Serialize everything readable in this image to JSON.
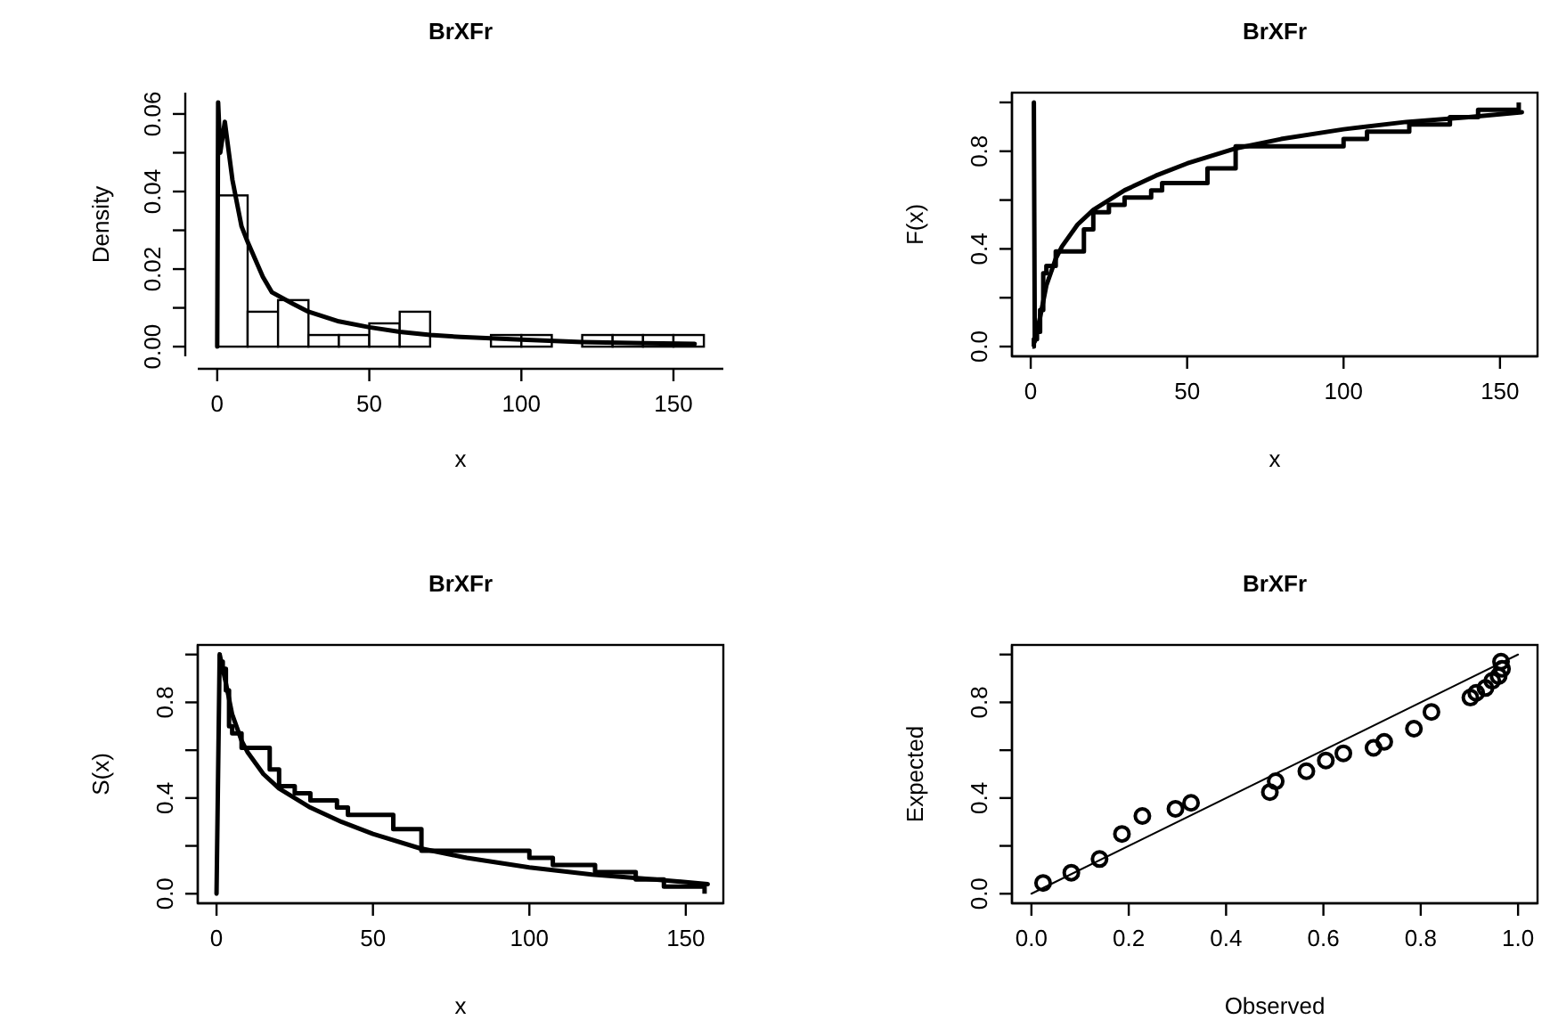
{
  "chart_data": [
    {
      "type": "histogram",
      "title": "BrXFr",
      "xlabel": "x",
      "ylabel": "Density",
      "xlim": [
        -6.4,
        166.4
      ],
      "ylim": [
        -0.0025,
        0.0655
      ],
      "xticks": [
        0,
        50,
        100,
        150
      ],
      "yticks": [
        {
          "value": 0,
          "label": "0.00"
        },
        {
          "value": 0.01,
          "label": null
        },
        {
          "value": 0.02,
          "label": "0.02"
        },
        {
          "value": 0.03,
          "label": null
        },
        {
          "value": 0.04,
          "label": "0.04"
        },
        {
          "value": 0.05,
          "label": null
        },
        {
          "value": 0.06,
          "label": "0.06"
        }
      ],
      "series": [
        {
          "type": "histogram",
          "color": "#ffffff",
          "bins": [
            0,
            10,
            20,
            30,
            40,
            50,
            60,
            70,
            80,
            90,
            100,
            110,
            120,
            130,
            140,
            150,
            160
          ],
          "values": [
            0.039,
            0.009,
            0.012,
            0.003,
            0.003,
            0.006,
            0.009,
            0,
            0,
            0.003,
            0.003,
            0,
            0.003,
            0.003,
            0.003,
            0.003
          ]
        },
        {
          "type": "line",
          "color": "#000000",
          "x": [
            0,
            0.3,
            1,
            2.5,
            3,
            5,
            8,
            10,
            15,
            18,
            25,
            30,
            40,
            50,
            60,
            70,
            80,
            100,
            120,
            140,
            157
          ],
          "values": [
            0,
            0.063,
            0.05,
            0.058,
            0.055,
            0.043,
            0.031,
            0.027,
            0.018,
            0.014,
            0.011,
            0.009,
            0.0065,
            0.005,
            0.0038,
            0.003,
            0.0025,
            0.0018,
            0.0012,
            0.0009,
            0.0007
          ]
        }
      ]
    },
    {
      "type": "line",
      "title": "BrXFr",
      "xlabel": "x",
      "ylabel": "F(x)",
      "xlim": [
        -6,
        162
      ],
      "ylim": [
        -0.04,
        1.04
      ],
      "xticks": [
        0,
        50,
        100,
        150
      ],
      "yticks": [
        {
          "value": 0,
          "label": "0.0"
        },
        {
          "value": 0.2,
          "label": null
        },
        {
          "value": 0.4,
          "label": "0.4"
        },
        {
          "value": 0.6,
          "label": null
        },
        {
          "value": 0.8,
          "label": "0.8"
        },
        {
          "value": 1,
          "label": null
        }
      ],
      "series": [
        {
          "type": "step",
          "color": "#000000",
          "x": [
            0.5,
            1,
            2,
            3,
            4,
            5,
            8,
            17,
            20,
            25,
            30,
            38.5,
            42,
            56.5,
            65.5,
            100,
            107.5,
            121,
            134,
            143,
            156
          ],
          "values": [
            0,
            0.03,
            0.06,
            0.15,
            0.3,
            0.33,
            0.39,
            0.48,
            0.55,
            0.58,
            0.61,
            0.64,
            0.67,
            0.73,
            0.82,
            0.85,
            0.88,
            0.91,
            0.94,
            0.97,
            1.0
          ]
        },
        {
          "type": "line",
          "color": "#000000",
          "x": [
            1,
            1.3,
            3,
            5,
            8,
            10,
            15,
            20,
            30,
            40,
            50,
            65,
            80,
            100,
            120,
            140,
            157
          ],
          "values": [
            1.0,
            0.02,
            0.12,
            0.25,
            0.36,
            0.41,
            0.5,
            0.56,
            0.64,
            0.7,
            0.75,
            0.81,
            0.85,
            0.89,
            0.92,
            0.94,
            0.96
          ]
        }
      ]
    },
    {
      "type": "line",
      "title": "BrXFr",
      "xlabel": "x",
      "ylabel": "S(x)",
      "xlim": [
        -6,
        162
      ],
      "ylim": [
        -0.04,
        1.04
      ],
      "xticks": [
        0,
        50,
        100,
        150
      ],
      "yticks": [
        {
          "value": 0,
          "label": "0.0"
        },
        {
          "value": 0.2,
          "label": null
        },
        {
          "value": 0.4,
          "label": "0.4"
        },
        {
          "value": 0.6,
          "label": null
        },
        {
          "value": 0.8,
          "label": "0.8"
        },
        {
          "value": 1,
          "label": null
        }
      ],
      "series": [
        {
          "type": "step",
          "color": "#000000",
          "x": [
            0.5,
            1,
            2,
            3,
            4,
            5,
            8,
            17,
            20,
            25,
            30,
            38.5,
            42,
            56.5,
            65.5,
            100,
            107.5,
            121,
            134,
            143,
            156
          ],
          "values": [
            1.0,
            0.97,
            0.94,
            0.85,
            0.7,
            0.67,
            0.61,
            0.52,
            0.45,
            0.42,
            0.39,
            0.36,
            0.33,
            0.27,
            0.18,
            0.15,
            0.12,
            0.09,
            0.06,
            0.03,
            0.0
          ]
        },
        {
          "type": "line",
          "color": "#000000",
          "x": [
            0,
            1,
            3,
            5,
            8,
            10,
            15,
            20,
            30,
            40,
            50,
            65,
            80,
            100,
            120,
            140,
            157
          ],
          "values": [
            0,
            1.0,
            0.88,
            0.75,
            0.64,
            0.59,
            0.5,
            0.44,
            0.36,
            0.3,
            0.25,
            0.19,
            0.15,
            0.11,
            0.08,
            0.06,
            0.04
          ]
        }
      ]
    },
    {
      "type": "scatter",
      "title": "BrXFr",
      "xlabel": "Observed",
      "ylabel": "Expected",
      "xlim": [
        -0.04,
        1.04
      ],
      "ylim": [
        -0.04,
        1.04
      ],
      "xticks": [
        {
          "value": 0,
          "label": "0.0"
        },
        {
          "value": 0.2,
          "label": "0.2"
        },
        {
          "value": 0.4,
          "label": "0.4"
        },
        {
          "value": 0.6,
          "label": "0.6"
        },
        {
          "value": 0.8,
          "label": "0.8"
        },
        {
          "value": 1,
          "label": "1.0"
        }
      ],
      "yticks": [
        {
          "value": 0,
          "label": "0.0"
        },
        {
          "value": 0.2,
          "label": null
        },
        {
          "value": 0.4,
          "label": "0.4"
        },
        {
          "value": 0.6,
          "label": null
        },
        {
          "value": 0.8,
          "label": "0.8"
        },
        {
          "value": 1,
          "label": null
        }
      ],
      "series": [
        {
          "type": "scatter",
          "marker": "circle",
          "color": "#000000",
          "x": [
            0.024,
            0.082,
            0.14,
            0.186,
            0.228,
            0.296,
            0.328,
            0.49,
            0.502,
            0.565,
            0.605,
            0.641,
            0.703,
            0.725,
            0.786,
            0.822,
            0.902,
            0.914,
            0.933,
            0.947,
            0.96,
            0.967,
            0.965
          ],
          "values": [
            0.045,
            0.088,
            0.145,
            0.25,
            0.325,
            0.355,
            0.38,
            0.425,
            0.47,
            0.512,
            0.557,
            0.587,
            0.61,
            0.635,
            0.69,
            0.76,
            0.82,
            0.84,
            0.86,
            0.89,
            0.91,
            0.94,
            0.97
          ]
        },
        {
          "type": "line",
          "color": "#000000",
          "x": [
            0,
            1
          ],
          "values": [
            0,
            1
          ]
        }
      ]
    }
  ]
}
